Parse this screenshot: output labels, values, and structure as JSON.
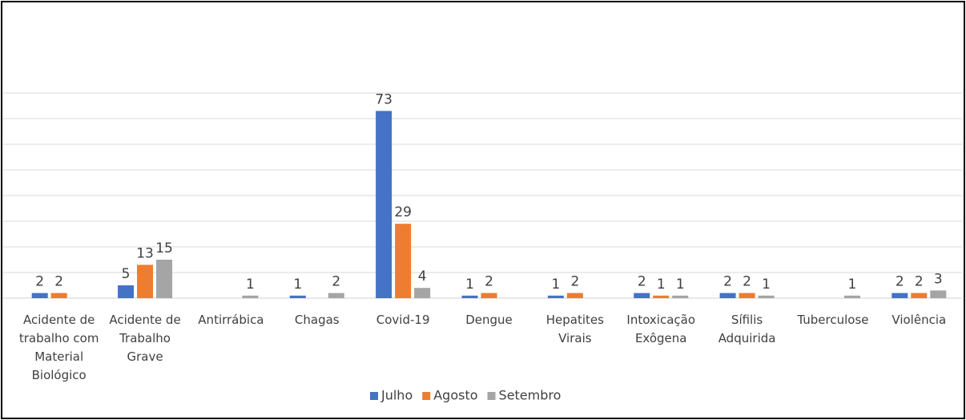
{
  "chart_data": {
    "type": "bar",
    "categories": [
      "Acidente de trabalho com Material Biológico",
      "Acidente de Trabalho Grave",
      "Antirrábica",
      "Chagas",
      "Covid-19",
      "Dengue",
      "Hepatites Virais",
      "Intoxicação Exôgena",
      "Sífilis Adquirida",
      "Tuberculose",
      "Violência"
    ],
    "series": [
      {
        "name": "Julho",
        "color": "#4472c4",
        "values": [
          2,
          5,
          null,
          1,
          73,
          1,
          1,
          2,
          2,
          null,
          2
        ]
      },
      {
        "name": "Agosto",
        "color": "#ed7d31",
        "values": [
          2,
          13,
          null,
          null,
          29,
          2,
          2,
          1,
          2,
          null,
          2
        ]
      },
      {
        "name": "Setembro",
        "color": "#a5a5a5",
        "values": [
          null,
          15,
          1,
          2,
          4,
          null,
          null,
          1,
          1,
          1,
          3
        ]
      }
    ],
    "ylim": [
      0,
      80
    ],
    "yticks": [
      0,
      10,
      20,
      30,
      40,
      50,
      60,
      70,
      80
    ],
    "grid": true,
    "legend": "bottom"
  }
}
